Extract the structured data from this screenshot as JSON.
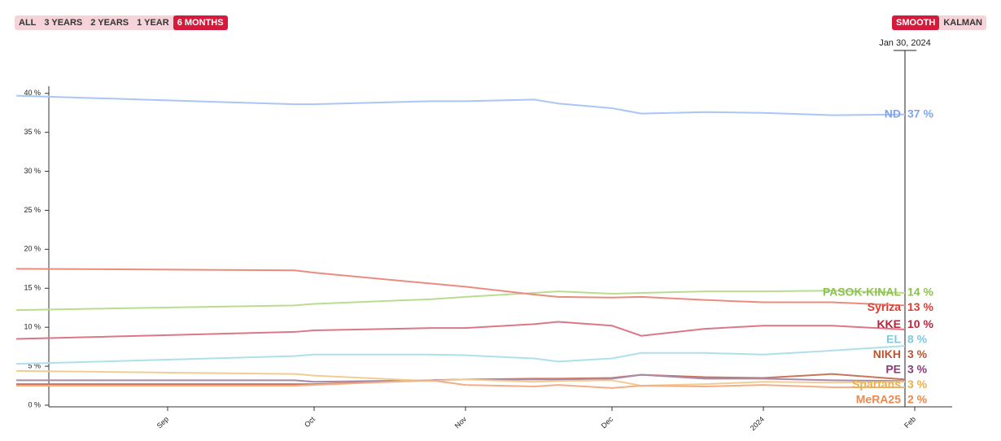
{
  "range_buttons": [
    {
      "label": "ALL",
      "active": false
    },
    {
      "label": "3 YEARS",
      "active": false
    },
    {
      "label": "2 YEARS",
      "active": false
    },
    {
      "label": "1 YEAR",
      "active": false
    },
    {
      "label": "6 MONTHS",
      "active": true
    }
  ],
  "method_buttons": [
    {
      "label": "SMOOTH",
      "active": true
    },
    {
      "label": "KALMAN",
      "active": false
    }
  ],
  "chart_data": {
    "type": "line",
    "cursor": {
      "value": "2024-01-30",
      "label": "Jan 30, 2024"
    },
    "x": [
      "2023-08-01",
      "2023-09-27",
      "2023-10-01",
      "2023-10-25",
      "2023-11-01",
      "2023-11-15",
      "2023-11-20",
      "2023-12-01",
      "2023-12-07",
      "2023-12-20",
      "2024-01-01",
      "2024-01-15",
      "2024-01-30"
    ],
    "xlim": [
      "2023-08-01",
      "2024-02-09"
    ],
    "xticks": [
      {
        "value": "2023-09-01",
        "label": "Sep"
      },
      {
        "value": "2023-10-01",
        "label": "Oct"
      },
      {
        "value": "2023-11-01",
        "label": "Nov"
      },
      {
        "value": "2023-12-01",
        "label": "Dec"
      },
      {
        "value": "2024-01-01",
        "label": "2024"
      },
      {
        "value": "2024-02-01",
        "label": "Feb"
      }
    ],
    "ylim": [
      0,
      43
    ],
    "yticks": [
      {
        "value": 0,
        "label": "0 %"
      },
      {
        "value": 5,
        "label": "5 %"
      },
      {
        "value": 10,
        "label": "10 %"
      },
      {
        "value": 15,
        "label": "15 %"
      },
      {
        "value": 20,
        "label": "20 %"
      },
      {
        "value": 25,
        "label": "25 %"
      },
      {
        "value": 30,
        "label": "30 %"
      },
      {
        "value": 35,
        "label": "35 %"
      },
      {
        "value": 40,
        "label": "40 %"
      }
    ],
    "series": [
      {
        "name": "ND",
        "color": "#aac6f5",
        "label_color": "#7fa6e8",
        "values": [
          39.7,
          38.6,
          38.6,
          39.0,
          39.0,
          39.2,
          38.7,
          38.1,
          37.4,
          37.6,
          37.5,
          37.2,
          37.3
        ],
        "value_labels": [
          null,
          null,
          null,
          null,
          null,
          null,
          null,
          null,
          null,
          null,
          null,
          null,
          "37 %"
        ]
      },
      {
        "name": "PASOK-KINAL",
        "color": "#b9dc8f",
        "label_color": "#8cc152",
        "values": [
          12.2,
          12.8,
          13.0,
          13.6,
          13.9,
          14.4,
          14.6,
          14.3,
          14.4,
          14.6,
          14.6,
          14.7,
          14.4
        ],
        "value_labels": [
          null,
          null,
          null,
          null,
          null,
          null,
          null,
          null,
          null,
          null,
          null,
          null,
          "14 %"
        ]
      },
      {
        "name": "Syriza",
        "color": "#eb8b80",
        "label_color": "#e03a2e",
        "values": [
          17.5,
          17.3,
          17.0,
          15.6,
          15.2,
          14.2,
          13.9,
          13.8,
          13.9,
          13.5,
          13.2,
          13.2,
          12.8
        ],
        "value_labels": [
          null,
          null,
          null,
          null,
          null,
          null,
          null,
          null,
          null,
          null,
          null,
          null,
          "13 %"
        ]
      },
      {
        "name": "KKE",
        "color": "#dc7886",
        "label_color": "#b5253d",
        "values": [
          8.5,
          9.4,
          9.6,
          9.9,
          9.9,
          10.4,
          10.7,
          10.2,
          8.9,
          9.8,
          10.2,
          10.2,
          9.7
        ],
        "value_labels": [
          null,
          null,
          null,
          null,
          null,
          null,
          null,
          null,
          null,
          null,
          null,
          null,
          "10 %"
        ]
      },
      {
        "name": "EL",
        "color": "#b0dfec",
        "label_color": "#7fc9df",
        "values": [
          5.3,
          6.3,
          6.5,
          6.5,
          6.4,
          6.0,
          5.6,
          6.0,
          6.7,
          6.7,
          6.5,
          7.0,
          7.6
        ],
        "value_labels": [
          null,
          null,
          null,
          null,
          null,
          null,
          null,
          null,
          null,
          null,
          null,
          null,
          "8 %"
        ]
      },
      {
        "name": "NIKH",
        "color": "#c9735a",
        "label_color": "#c0532f",
        "values": [
          2.7,
          2.7,
          2.7,
          3.2,
          3.3,
          3.4,
          3.4,
          3.5,
          3.9,
          3.6,
          3.5,
          4.0,
          3.3
        ],
        "value_labels": [
          null,
          null,
          null,
          null,
          null,
          null,
          null,
          null,
          null,
          null,
          null,
          null,
          "3 %"
        ]
      },
      {
        "name": "PE",
        "color": "#a88aa8",
        "label_color": "#8a3c7a",
        "values": [
          3.2,
          3.2,
          3.0,
          3.2,
          3.3,
          3.3,
          3.3,
          3.4,
          3.9,
          3.4,
          3.4,
          3.2,
          3.1
        ],
        "value_labels": [
          null,
          null,
          null,
          null,
          null,
          null,
          null,
          null,
          null,
          null,
          null,
          null,
          "3 %"
        ]
      },
      {
        "name": "Spartans",
        "color": "#f2cd92",
        "label_color": "#e8b04a",
        "values": [
          4.4,
          4.0,
          3.8,
          3.1,
          3.3,
          3.0,
          3.1,
          3.2,
          2.5,
          2.7,
          3.0,
          2.9,
          3.0
        ],
        "value_labels": [
          null,
          null,
          null,
          null,
          null,
          null,
          null,
          null,
          null,
          null,
          null,
          null,
          "3 %"
        ]
      },
      {
        "name": "MeRA25",
        "color": "#f4ad86",
        "label_color": "#ea8a4e",
        "values": [
          2.5,
          2.5,
          2.6,
          3.2,
          2.6,
          2.4,
          2.6,
          2.2,
          2.5,
          2.4,
          2.6,
          2.3,
          2.3
        ],
        "value_labels": [
          null,
          null,
          null,
          null,
          null,
          null,
          null,
          null,
          null,
          null,
          null,
          null,
          "2 %"
        ]
      }
    ]
  }
}
